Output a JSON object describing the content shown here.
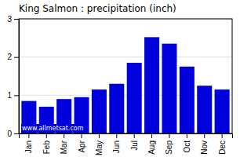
{
  "chart_data": {
    "type": "bar",
    "title": "King Salmon : precipitation (inch)",
    "categories": [
      "Jan",
      "Feb",
      "Mar",
      "Apr",
      "May",
      "Jun",
      "Jul",
      "Aug",
      "Sep",
      "Oct",
      "Nov",
      "Dec"
    ],
    "values": [
      0.85,
      0.7,
      0.9,
      0.95,
      1.15,
      1.3,
      1.85,
      2.52,
      2.35,
      1.75,
      1.25,
      1.15
    ],
    "color": "#0000dd",
    "ylim": [
      0,
      3.0
    ],
    "yticks": [
      0,
      1,
      2,
      3
    ],
    "grid": true,
    "annotations": [
      "www.allmetsat.com"
    ]
  }
}
